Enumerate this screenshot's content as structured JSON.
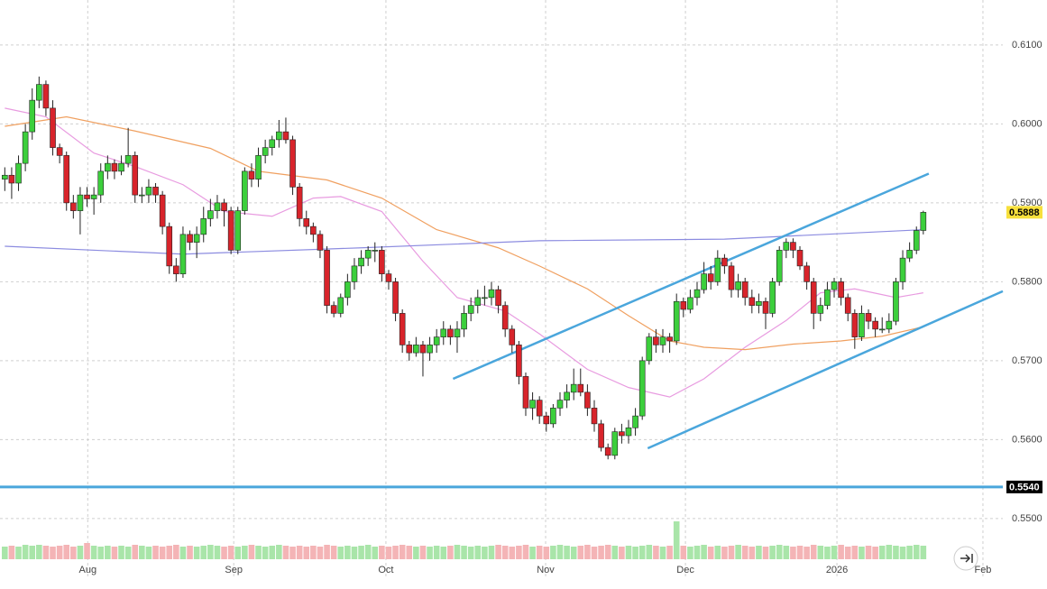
{
  "chart_data": {
    "type": "candlestick",
    "xlim": [
      -0.7,
      145.6
    ],
    "ylim": [
      0.5477,
      0.6157
    ],
    "xticks": [
      {
        "value": 12.1,
        "label": "Aug"
      },
      {
        "value": 33.4,
        "label": "Sep"
      },
      {
        "value": 55.6,
        "label": "Oct"
      },
      {
        "value": 78.9,
        "label": "Nov"
      },
      {
        "value": 99.3,
        "label": "Dec"
      },
      {
        "value": 121.4,
        "label": "2026"
      },
      {
        "value": 142.7,
        "label": "Feb"
      }
    ],
    "yticks": [
      {
        "value": 0.55,
        "label": "0.5500"
      },
      {
        "value": 0.56,
        "label": "0.5600"
      },
      {
        "value": 0.57,
        "label": "0.5700"
      },
      {
        "value": 0.58,
        "label": "0.5800"
      },
      {
        "value": 0.59,
        "label": "0.5900"
      },
      {
        "value": 0.6,
        "label": "0.6000"
      },
      {
        "value": 0.61,
        "label": "0.6100"
      }
    ],
    "grid": true,
    "up_color": "#3ccf3c",
    "down_color": "#d8242b",
    "ohlc": [
      [
        0.593,
        0.5945,
        0.5915,
        0.5935
      ],
      [
        0.5935,
        0.5945,
        0.5905,
        0.5925
      ],
      [
        0.5925,
        0.596,
        0.5915,
        0.595
      ],
      [
        0.595,
        0.6,
        0.594,
        0.599
      ],
      [
        0.599,
        0.6045,
        0.598,
        0.603
      ],
      [
        0.603,
        0.606,
        0.602,
        0.605
      ],
      [
        0.605,
        0.6055,
        0.601,
        0.602
      ],
      [
        0.602,
        0.603,
        0.596,
        0.597
      ],
      [
        0.597,
        0.5975,
        0.595,
        0.596
      ],
      [
        0.596,
        0.5965,
        0.589,
        0.59
      ],
      [
        0.59,
        0.591,
        0.588,
        0.589
      ],
      [
        0.589,
        0.592,
        0.586,
        0.591
      ],
      [
        0.591,
        0.592,
        0.5895,
        0.5905
      ],
      [
        0.5905,
        0.592,
        0.5885,
        0.591
      ],
      [
        0.591,
        0.595,
        0.59,
        0.594
      ],
      [
        0.594,
        0.596,
        0.593,
        0.595
      ],
      [
        0.595,
        0.5955,
        0.593,
        0.594
      ],
      [
        0.594,
        0.596,
        0.5935,
        0.595
      ],
      [
        0.595,
        0.5995,
        0.5945,
        0.596
      ],
      [
        0.596,
        0.5965,
        0.59,
        0.591
      ],
      [
        0.591,
        0.592,
        0.59,
        0.591
      ],
      [
        0.591,
        0.593,
        0.59,
        0.592
      ],
      [
        0.592,
        0.5925,
        0.59,
        0.591
      ],
      [
        0.591,
        0.5915,
        0.586,
        0.587
      ],
      [
        0.587,
        0.5875,
        0.581,
        0.582
      ],
      [
        0.582,
        0.583,
        0.58,
        0.581
      ],
      [
        0.581,
        0.587,
        0.5805,
        0.586
      ],
      [
        0.586,
        0.5865,
        0.584,
        0.585
      ],
      [
        0.585,
        0.587,
        0.583,
        0.586
      ],
      [
        0.586,
        0.5895,
        0.585,
        0.588
      ],
      [
        0.588,
        0.5905,
        0.587,
        0.589
      ],
      [
        0.589,
        0.591,
        0.588,
        0.59
      ],
      [
        0.59,
        0.5905,
        0.587,
        0.589
      ],
      [
        0.589,
        0.5895,
        0.5835,
        0.584
      ],
      [
        0.584,
        0.5895,
        0.5835,
        0.589
      ],
      [
        0.589,
        0.5945,
        0.5885,
        0.594
      ],
      [
        0.594,
        0.595,
        0.592,
        0.593
      ],
      [
        0.593,
        0.597,
        0.592,
        0.596
      ],
      [
        0.596,
        0.598,
        0.595,
        0.597
      ],
      [
        0.597,
        0.5985,
        0.596,
        0.598
      ],
      [
        0.598,
        0.6005,
        0.597,
        0.599
      ],
      [
        0.599,
        0.6008,
        0.5975,
        0.598
      ],
      [
        0.598,
        0.5985,
        0.591,
        0.592
      ],
      [
        0.592,
        0.5925,
        0.587,
        0.588
      ],
      [
        0.588,
        0.589,
        0.586,
        0.587
      ],
      [
        0.587,
        0.5875,
        0.585,
        0.586
      ],
      [
        0.586,
        0.5865,
        0.583,
        0.584
      ],
      [
        0.584,
        0.5845,
        0.576,
        0.577
      ],
      [
        0.577,
        0.5775,
        0.5755,
        0.576
      ],
      [
        0.576,
        0.5785,
        0.5755,
        0.578
      ],
      [
        0.578,
        0.581,
        0.577,
        0.58
      ],
      [
        0.58,
        0.583,
        0.579,
        0.582
      ],
      [
        0.582,
        0.584,
        0.581,
        0.583
      ],
      [
        0.583,
        0.5845,
        0.582,
        0.584
      ],
      [
        0.584,
        0.585,
        0.5825,
        0.584
      ],
      [
        0.584,
        0.5845,
        0.58,
        0.581
      ],
      [
        0.581,
        0.5815,
        0.579,
        0.58
      ],
      [
        0.58,
        0.5805,
        0.575,
        0.576
      ],
      [
        0.576,
        0.5765,
        0.571,
        0.572
      ],
      [
        0.572,
        0.5725,
        0.57,
        0.571
      ],
      [
        0.571,
        0.573,
        0.5705,
        0.572
      ],
      [
        0.572,
        0.5725,
        0.568,
        0.571
      ],
      [
        0.571,
        0.573,
        0.57,
        0.572
      ],
      [
        0.572,
        0.574,
        0.571,
        0.573
      ],
      [
        0.573,
        0.575,
        0.572,
        0.574
      ],
      [
        0.574,
        0.5745,
        0.572,
        0.573
      ],
      [
        0.573,
        0.575,
        0.571,
        0.574
      ],
      [
        0.574,
        0.577,
        0.573,
        0.576
      ],
      [
        0.576,
        0.578,
        0.575,
        0.577
      ],
      [
        0.577,
        0.579,
        0.576,
        0.578
      ],
      [
        0.578,
        0.5795,
        0.577,
        0.578
      ],
      [
        0.578,
        0.58,
        0.577,
        0.579
      ],
      [
        0.579,
        0.5795,
        0.576,
        0.577
      ],
      [
        0.577,
        0.5775,
        0.573,
        0.574
      ],
      [
        0.574,
        0.5745,
        0.571,
        0.572
      ],
      [
        0.572,
        0.5725,
        0.567,
        0.568
      ],
      [
        0.568,
        0.5685,
        0.563,
        0.564
      ],
      [
        0.564,
        0.566,
        0.5625,
        0.565
      ],
      [
        0.565,
        0.5655,
        0.562,
        0.563
      ],
      [
        0.563,
        0.5635,
        0.561,
        0.562
      ],
      [
        0.562,
        0.5645,
        0.5615,
        0.564
      ],
      [
        0.564,
        0.566,
        0.563,
        0.565
      ],
      [
        0.565,
        0.567,
        0.564,
        0.566
      ],
      [
        0.566,
        0.569,
        0.565,
        0.567
      ],
      [
        0.567,
        0.569,
        0.5655,
        0.566
      ],
      [
        0.566,
        0.567,
        0.563,
        0.564
      ],
      [
        0.564,
        0.565,
        0.561,
        0.562
      ],
      [
        0.562,
        0.5625,
        0.5585,
        0.559
      ],
      [
        0.559,
        0.5595,
        0.5575,
        0.558
      ],
      [
        0.558,
        0.5615,
        0.5575,
        0.561
      ],
      [
        0.561,
        0.562,
        0.5595,
        0.5605
      ],
      [
        0.5605,
        0.5625,
        0.5595,
        0.5615
      ],
      [
        0.5615,
        0.564,
        0.5605,
        0.563
      ],
      [
        0.563,
        0.5705,
        0.5625,
        0.57
      ],
      [
        0.57,
        0.5735,
        0.5695,
        0.573
      ],
      [
        0.573,
        0.574,
        0.571,
        0.572
      ],
      [
        0.572,
        0.574,
        0.571,
        0.573
      ],
      [
        0.573,
        0.5735,
        0.571,
        0.5725
      ],
      [
        0.5725,
        0.5785,
        0.572,
        0.5775
      ],
      [
        0.5775,
        0.578,
        0.5755,
        0.5765
      ],
      [
        0.5765,
        0.579,
        0.576,
        0.578
      ],
      [
        0.578,
        0.58,
        0.577,
        0.579
      ],
      [
        0.579,
        0.5825,
        0.5785,
        0.581
      ],
      [
        0.581,
        0.582,
        0.579,
        0.58
      ],
      [
        0.58,
        0.584,
        0.5795,
        0.583
      ],
      [
        0.583,
        0.5835,
        0.581,
        0.582
      ],
      [
        0.582,
        0.5825,
        0.578,
        0.579
      ],
      [
        0.579,
        0.581,
        0.578,
        0.58
      ],
      [
        0.58,
        0.5805,
        0.577,
        0.578
      ],
      [
        0.578,
        0.579,
        0.576,
        0.577
      ],
      [
        0.577,
        0.5785,
        0.576,
        0.5775
      ],
      [
        0.5775,
        0.578,
        0.574,
        0.576
      ],
      [
        0.576,
        0.5805,
        0.5755,
        0.58
      ],
      [
        0.58,
        0.5845,
        0.5795,
        0.584
      ],
      [
        0.584,
        0.5855,
        0.583,
        0.585
      ],
      [
        0.585,
        0.5855,
        0.583,
        0.584
      ],
      [
        0.584,
        0.5845,
        0.5815,
        0.582
      ],
      [
        0.582,
        0.5825,
        0.579,
        0.58
      ],
      [
        0.58,
        0.5805,
        0.574,
        0.576
      ],
      [
        0.576,
        0.578,
        0.575,
        0.577
      ],
      [
        0.577,
        0.58,
        0.5765,
        0.579
      ],
      [
        0.579,
        0.5805,
        0.578,
        0.58
      ],
      [
        0.58,
        0.5805,
        0.577,
        0.578
      ],
      [
        0.578,
        0.5785,
        0.575,
        0.576
      ],
      [
        0.576,
        0.5765,
        0.5715,
        0.573
      ],
      [
        0.573,
        0.577,
        0.5725,
        0.576
      ],
      [
        0.576,
        0.5765,
        0.574,
        0.575
      ],
      [
        0.575,
        0.5755,
        0.573,
        0.574
      ],
      [
        0.574,
        0.5755,
        0.5735,
        0.574
      ],
      [
        0.574,
        0.576,
        0.5735,
        0.575
      ],
      [
        0.575,
        0.5805,
        0.5745,
        0.58
      ],
      [
        0.58,
        0.584,
        0.579,
        0.583
      ],
      [
        0.583,
        0.585,
        0.5825,
        0.584
      ],
      [
        0.584,
        0.587,
        0.5835,
        0.5865
      ],
      [
        0.5865,
        0.589,
        0.586,
        0.5888
      ]
    ],
    "volume_lim": [
      0,
      45
    ],
    "volume": [
      14,
      15,
      14,
      16,
      15,
      16,
      15,
      14,
      15,
      16,
      14,
      15,
      18,
      15,
      14,
      15,
      14,
      15,
      14,
      16,
      15,
      14,
      15,
      14,
      15,
      16,
      14,
      15,
      14,
      15,
      16,
      15,
      14,
      15,
      14,
      15,
      16,
      15,
      14,
      15,
      16,
      15,
      14,
      15,
      14,
      15,
      14,
      16,
      15,
      14,
      15,
      14,
      15,
      16,
      14,
      15,
      14,
      15,
      16,
      15,
      14,
      15,
      14,
      15,
      14,
      15,
      16,
      15,
      14,
      15,
      14,
      15,
      16,
      15,
      14,
      15,
      16,
      14,
      15,
      14,
      15,
      16,
      15,
      14,
      15,
      16,
      14,
      15,
      16,
      15,
      14,
      15,
      14,
      15,
      16,
      15,
      14,
      15,
      42,
      15,
      14,
      15,
      16,
      14,
      15,
      14,
      15,
      16,
      15,
      14,
      15,
      14,
      15,
      16,
      15,
      14,
      15,
      14,
      16,
      15,
      14,
      15,
      16,
      14,
      15,
      14,
      15,
      14,
      15,
      16,
      15,
      14,
      15,
      16,
      15
    ],
    "series": [
      {
        "color": "#e89be0",
        "x": [
          0,
          6,
          13,
          19,
          26,
          32,
          39,
          45,
          49,
          55,
          61,
          66,
          73,
          78,
          85,
          91,
          97,
          102,
          108,
          114,
          119,
          124,
          130,
          134
        ],
        "values": [
          0.602,
          0.6009,
          0.5963,
          0.5946,
          0.5923,
          0.5889,
          0.5883,
          0.5906,
          0.5908,
          0.5889,
          0.5826,
          0.578,
          0.5763,
          0.5734,
          0.5689,
          0.5666,
          0.5654,
          0.5677,
          0.5717,
          0.5751,
          0.5786,
          0.5791,
          0.578,
          0.5786
        ]
      },
      {
        "color": "#f0a060",
        "x": [
          0,
          9,
          19,
          30,
          37,
          47,
          55,
          63,
          72,
          78,
          85,
          91,
          97,
          102,
          108,
          115,
          122,
          128,
          134
        ],
        "values": [
          0.5997,
          0.6009,
          0.5991,
          0.5969,
          0.594,
          0.5929,
          0.5906,
          0.5866,
          0.5843,
          0.582,
          0.5791,
          0.5757,
          0.5725,
          0.5717,
          0.5714,
          0.5721,
          0.5725,
          0.5731,
          0.5743
        ]
      },
      {
        "color": "#8c8ce0",
        "x": [
          0,
          26,
          52,
          78,
          105,
          134
        ],
        "values": [
          0.5845,
          0.5835,
          0.5843,
          0.5852,
          0.5854,
          0.5866
        ]
      }
    ],
    "trendlines": [
      {
        "color": "#4aa6dc",
        "x": [
          65.4,
          134.8
        ],
        "y": [
          0.5677,
          0.5937
        ]
      },
      {
        "color": "#4aa6dc",
        "x": [
          93.8,
          145.6
        ],
        "y": [
          0.5589,
          0.5788
        ]
      }
    ],
    "price_tags": [
      {
        "value": 0.5888,
        "label": "0.5888",
        "color": "#f7e03c",
        "text_color": "#000"
      },
      {
        "value": 0.554,
        "label": "0.5540",
        "color": "#000",
        "text_color": "#fff",
        "line_color": "#4aa6dc"
      }
    ]
  }
}
